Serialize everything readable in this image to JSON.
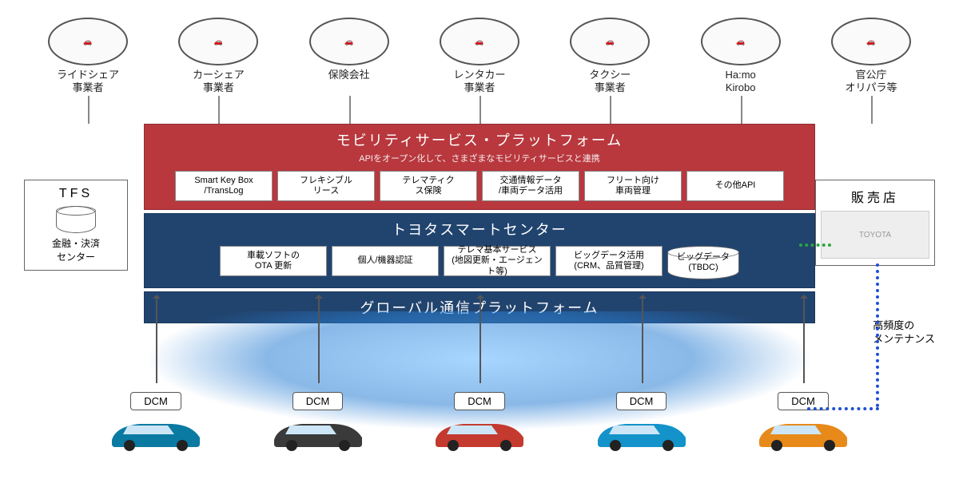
{
  "colors": {
    "red": "#b8383e",
    "blue": "#21446f",
    "grey": "#888888",
    "arrow_green": "#2aa63f",
    "arrow_blue": "#1d4fd1"
  },
  "top_partners": [
    {
      "label": "ライドシェア\n事業者",
      "icon": "rideshare"
    },
    {
      "label": "カーシェア\n事業者",
      "icon": "carshare"
    },
    {
      "label": "保険会社",
      "icon": "insurance"
    },
    {
      "label": "レンタカー\n事業者",
      "icon": "rental"
    },
    {
      "label": "タクシー\n事業者",
      "icon": "taxi"
    },
    {
      "label": "Ha:mo\nKirobo",
      "icon": "hamo"
    },
    {
      "label": "官公庁\nオリパラ等",
      "icon": "gov"
    }
  ],
  "layer_red": {
    "title": "モビリティサービス・プラットフォーム",
    "subtitle": "APIをオープン化して、さまざまなモビリティサービスと連携",
    "pills": [
      "Smart Key Box\n/TransLog",
      "フレキシブル\nリース",
      "テレマティク\nス保険",
      "交通情報データ\n/車両データ活用",
      "フリート向け\n車両管理",
      "その他API"
    ]
  },
  "layer_blue1": {
    "title": "トヨタスマートセンター",
    "pills": [
      "車載ソフトの\nOTA 更新",
      "個人/機器認証",
      "テレマ基本サービス\n(地図更新・エージェント等)",
      "ビッグデータ活用\n(CRM、品質管理)"
    ],
    "db": {
      "line1": "ビッグデータ",
      "line2": "(TBDC)"
    }
  },
  "layer_blue2": {
    "title": "グローバル通信プラットフォーム"
  },
  "side_left": {
    "heading": "TFS",
    "body": "金融・決済\nセンター"
  },
  "side_right": {
    "heading": "販売店",
    "img_label": "TOYOTA"
  },
  "note": "高頻度の\nメンテナンス",
  "cars": [
    {
      "dcm": "DCM",
      "color": "#0b7aa3"
    },
    {
      "dcm": "DCM",
      "color": "#3a3a3a"
    },
    {
      "dcm": "DCM",
      "color": "#c43a2f"
    },
    {
      "dcm": "DCM",
      "color": "#1393c9"
    },
    {
      "dcm": "DCM",
      "color": "#e78a1a"
    }
  ]
}
